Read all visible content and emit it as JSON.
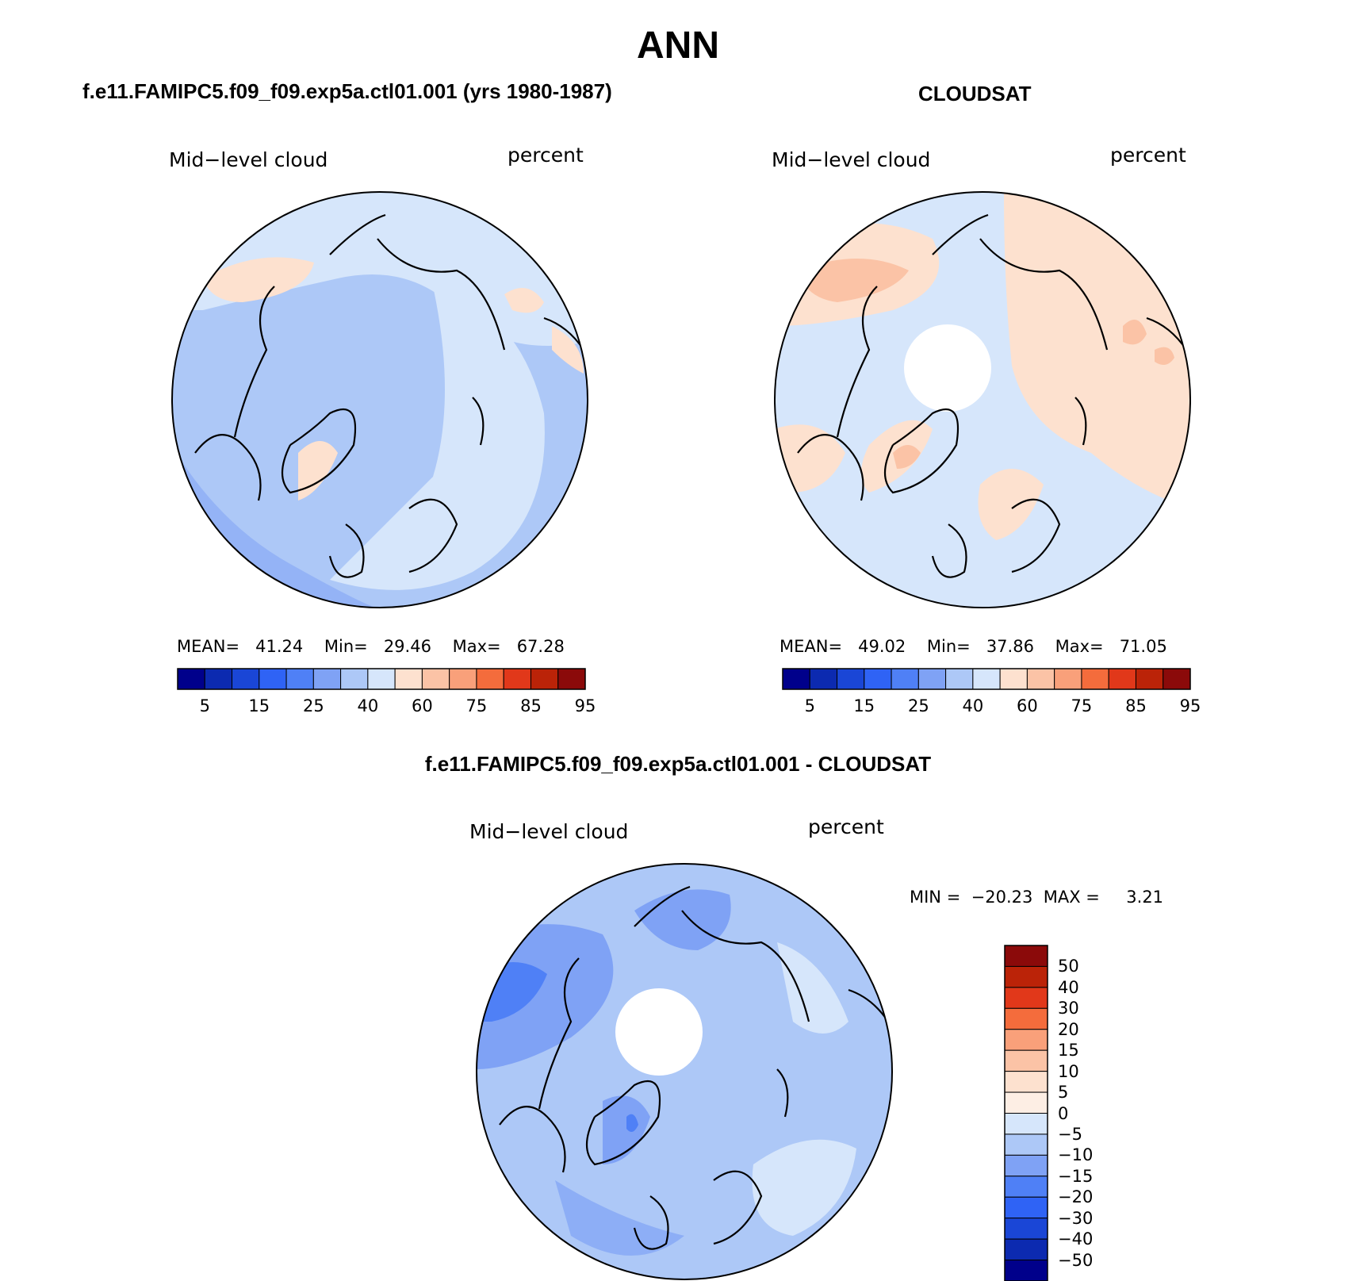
{
  "figure": {
    "title": "ANN",
    "panel_left_title": "f.e11.FAMIPC5.f09_f09.exp5a.ctl01.001 (yrs 1980-1987)",
    "panel_right_title": "CLOUDSAT",
    "panel_diff_title": "f.e11.FAMIPC5.f09_f09.exp5a.ctl01.001 - CLOUDSAT"
  },
  "chart_data": [
    {
      "type": "heatmap",
      "projection": "north polar stereographic",
      "variable": "Mid−level cloud",
      "units": "percent",
      "stats": {
        "mean_label": "MEAN=",
        "mean": "41.24",
        "min_label": "Min=",
        "min": "29.46",
        "max_label": "Max=",
        "max": "67.28"
      },
      "levels": [
        5,
        10,
        15,
        20,
        25,
        30,
        40,
        50,
        60,
        70,
        75,
        80,
        85,
        90,
        95
      ],
      "tick_labels": [
        "5",
        "15",
        "25",
        "40",
        "60",
        "75",
        "85",
        "95"
      ],
      "colors": [
        "#00008b",
        "#0c2ab0",
        "#1a46d6",
        "#2f63f5",
        "#4f80f6",
        "#7fa2f5",
        "#adc8f7",
        "#d6e6fb",
        "#fde1cf",
        "#fbc3a6",
        "#f9a07a",
        "#f46c3c",
        "#e1381a",
        "#bb2308",
        "#8b0a0a"
      ]
    },
    {
      "type": "heatmap",
      "projection": "north polar stereographic",
      "variable": "Mid−level cloud",
      "units": "percent",
      "stats": {
        "mean_label": "MEAN=",
        "mean": "49.02",
        "min_label": "Min=",
        "min": "37.86",
        "max_label": "Max=",
        "max": "71.05"
      },
      "levels": [
        5,
        10,
        15,
        20,
        25,
        30,
        40,
        50,
        60,
        70,
        75,
        80,
        85,
        90,
        95
      ],
      "tick_labels": [
        "5",
        "15",
        "25",
        "40",
        "60",
        "75",
        "85",
        "95"
      ],
      "colors": [
        "#00008b",
        "#0c2ab0",
        "#1a46d6",
        "#2f63f5",
        "#4f80f6",
        "#7fa2f5",
        "#adc8f7",
        "#d6e6fb",
        "#fde1cf",
        "#fbc3a6",
        "#f9a07a",
        "#f46c3c",
        "#e1381a",
        "#bb2308",
        "#8b0a0a"
      ]
    },
    {
      "type": "heatmap",
      "projection": "north polar stereographic",
      "variable": "Mid−level cloud",
      "units": "percent",
      "stats": {
        "min_label": "MIN =",
        "min": "−20.23",
        "max_label": "MAX =",
        "max": "3.21"
      },
      "levels": [
        50,
        40,
        30,
        20,
        15,
        10,
        5,
        0,
        -5,
        -10,
        -15,
        -20,
        -30,
        -40,
        -50
      ],
      "tick_labels": [
        "50",
        "40",
        "30",
        "20",
        "15",
        "10",
        "5",
        "0",
        "−5",
        "−10",
        "−15",
        "−20",
        "−30",
        "−40",
        "−50"
      ],
      "colors": [
        "#8b0a0a",
        "#bb2308",
        "#e1381a",
        "#f46c3c",
        "#f9a07a",
        "#fbc3a6",
        "#fde1cf",
        "#fdeee4",
        "#d6e6fb",
        "#adc8f7",
        "#7fa2f5",
        "#4f80f6",
        "#2f63f5",
        "#1a46d6",
        "#0c2ab0",
        "#00008b"
      ]
    }
  ]
}
